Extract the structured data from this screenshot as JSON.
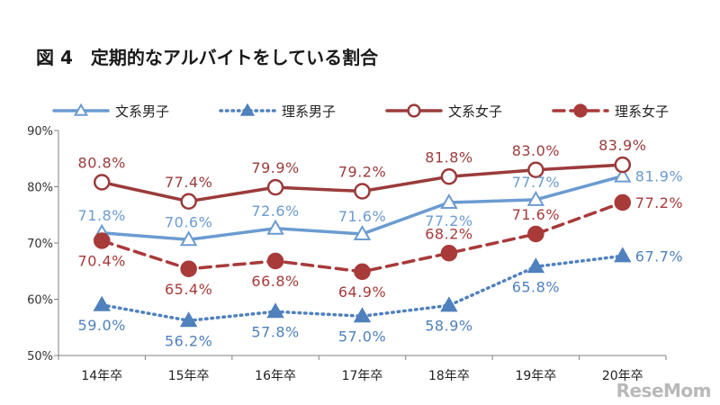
{
  "page": {
    "title": "図 4　定期的なアルバイトをしている割合",
    "watermark": "ReseMom"
  },
  "chart_data": {
    "type": "line",
    "title": "図 4　定期的なアルバイトをしている割合",
    "categories": [
      "14年卒",
      "15年卒",
      "16年卒",
      "17年卒",
      "18年卒",
      "19年卒",
      "20年卒"
    ],
    "ylim": [
      50,
      90
    ],
    "yticks": [
      "50%",
      "60%",
      "70%",
      "80%",
      "90%"
    ],
    "ytick_values": [
      50,
      60,
      70,
      80,
      90
    ],
    "grid": false,
    "legend_position": "top",
    "series": [
      {
        "name": "文系男子",
        "values": [
          71.8,
          70.6,
          72.6,
          71.6,
          77.2,
          77.7,
          81.9
        ],
        "labels": [
          "71.8%",
          "70.6%",
          "72.6%",
          "71.6%",
          "77.2%",
          "77.7%",
          "81.9%"
        ],
        "color": "#6b9bd1",
        "line": "solid",
        "marker": "triangle-open"
      },
      {
        "name": "理系男子",
        "values": [
          59.0,
          56.2,
          57.8,
          57.0,
          58.9,
          65.8,
          67.7
        ],
        "labels": [
          "59.0%",
          "56.2%",
          "57.8%",
          "57.0%",
          "58.9%",
          "65.8%",
          "67.7%"
        ],
        "color": "#4f81bd",
        "line": "dotted",
        "marker": "triangle-filled"
      },
      {
        "name": "文系女子",
        "values": [
          80.8,
          77.4,
          79.9,
          79.2,
          81.8,
          83.0,
          83.9
        ],
        "labels": [
          "80.8%",
          "77.4%",
          "79.9%",
          "79.2%",
          "81.8%",
          "83.0%",
          "83.9%"
        ],
        "color": "#9b3b3b",
        "line": "solid",
        "marker": "circle-open"
      },
      {
        "name": "理系女子",
        "values": [
          70.4,
          65.4,
          66.8,
          64.9,
          68.2,
          71.6,
          77.2
        ],
        "labels": [
          "70.4%",
          "65.4%",
          "66.8%",
          "64.9%",
          "68.2%",
          "71.6%",
          "77.2%"
        ],
        "color": "#a83a3a",
        "line": "dashed",
        "marker": "circle-filled"
      }
    ]
  }
}
